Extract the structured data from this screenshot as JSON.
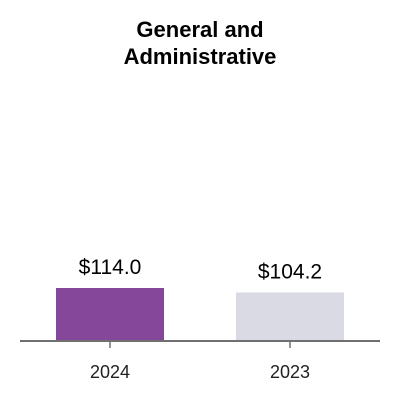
{
  "chart_data": {
    "type": "bar",
    "title_lines": [
      "General and",
      "Administrative"
    ],
    "categories": [
      "2024",
      "2023"
    ],
    "values": [
      114.0,
      104.2
    ],
    "value_labels": [
      "$114.0",
      "$104.2"
    ],
    "bar_colors": [
      "#84479a",
      "#d9dae3"
    ],
    "axis_color": "#707070",
    "xlabel": "",
    "ylabel": "",
    "ylim": [
      0,
      900
    ],
    "grid": false,
    "legend": "none"
  }
}
